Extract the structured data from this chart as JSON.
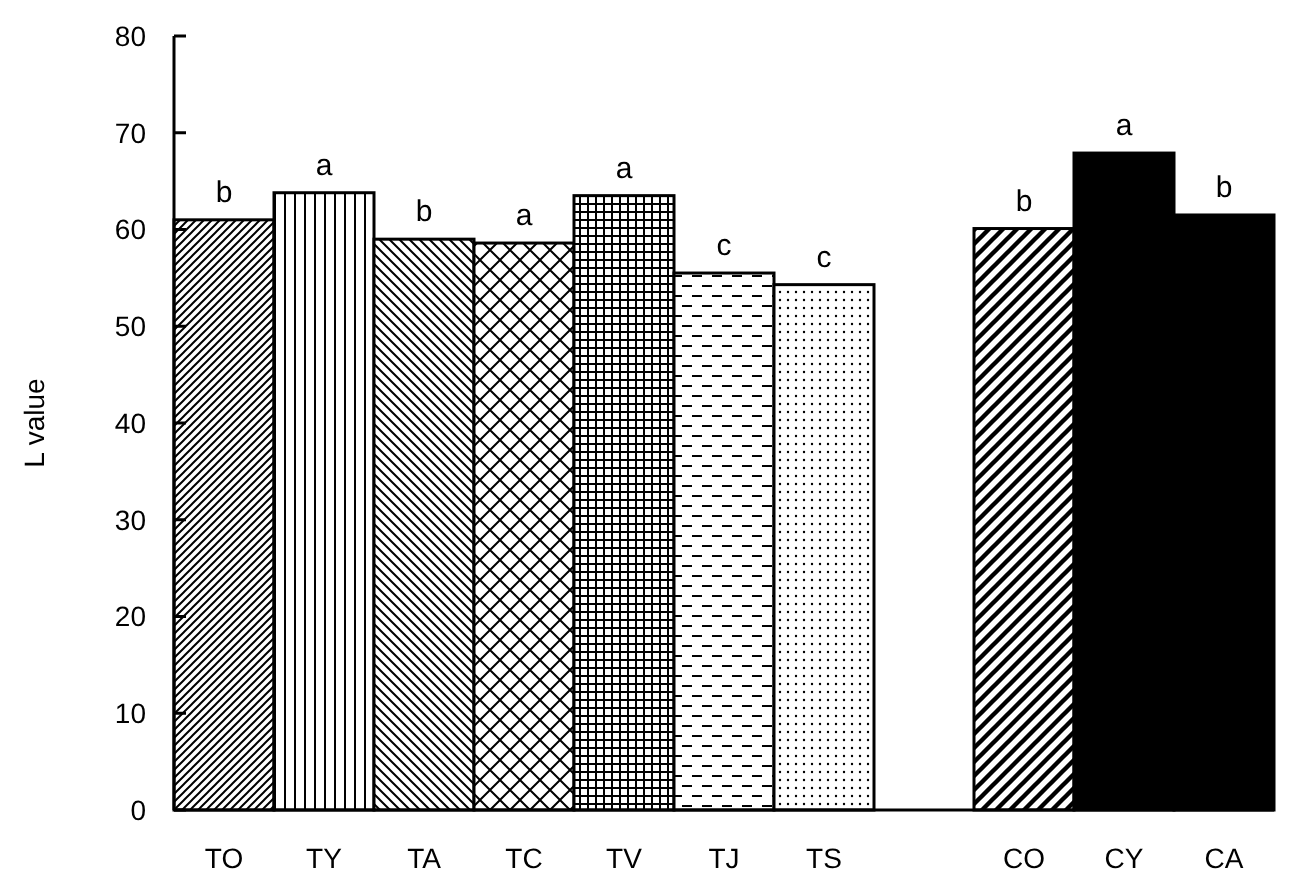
{
  "chart_data": {
    "type": "bar",
    "ylabel": "L value",
    "categories": [
      "TO",
      "TY",
      "TA",
      "TC",
      "TV",
      "TJ",
      "TS",
      null,
      "CO",
      "CY",
      "CA"
    ],
    "values": [
      61.0,
      63.8,
      59.0,
      58.6,
      63.5,
      55.5,
      54.3,
      null,
      60.1,
      67.9,
      61.5
    ],
    "colors": [
      "#000000",
      "#000000",
      "#000000",
      "#000000",
      "#000000",
      "#000000",
      "#000000",
      "#000000",
      "#000000",
      "#000000",
      "#000000"
    ],
    "ylim": [
      0,
      80
    ],
    "yticks": [
      0,
      10,
      20,
      30,
      40,
      50,
      60,
      70,
      80
    ],
    "grid": false,
    "annotations": [
      {
        "text": "b",
        "x": "TO",
        "y": 61.0
      },
      {
        "text": "a",
        "x": "TY",
        "y": 63.8
      },
      {
        "text": "b",
        "x": "TA",
        "y": 59.0
      },
      {
        "text": "a",
        "x": "TC",
        "y": 58.6
      },
      {
        "text": "a",
        "x": "TV",
        "y": 63.5
      },
      {
        "text": "c",
        "x": "TJ",
        "y": 55.5
      },
      {
        "text": "c",
        "x": "TS",
        "y": 54.3
      },
      {
        "text": "b",
        "x": "CO",
        "y": 60.1
      },
      {
        "text": "a",
        "x": "CY",
        "y": 67.9
      },
      {
        "text": "b",
        "x": "CA",
        "y": 61.5
      }
    ]
  }
}
